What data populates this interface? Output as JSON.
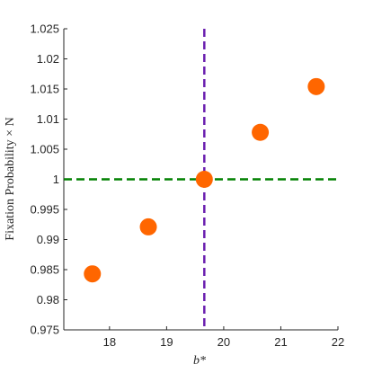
{
  "chart_data": {
    "type": "scatter",
    "title": "",
    "xlabel": "b*",
    "ylabel": "Fixation Probability × N",
    "xlim": [
      17.2,
      22
    ],
    "ylim": [
      0.975,
      1.025
    ],
    "xticks": [
      18,
      19,
      20,
      21,
      22
    ],
    "xtick_labels": [
      "18",
      "19",
      "20",
      "21",
      "22"
    ],
    "yticks": [
      0.975,
      0.98,
      0.985,
      0.99,
      0.995,
      1,
      1.005,
      1.01,
      1.015,
      1.02,
      1.025
    ],
    "ytick_labels": [
      "0.975",
      "0.98",
      "0.985",
      "0.99",
      "0.995",
      "1",
      "1.005",
      "1.01",
      "1.015",
      "1.02",
      "1.025"
    ],
    "grid": false,
    "points": [
      {
        "x": 17.7,
        "y": 0.9843
      },
      {
        "x": 18.68,
        "y": 0.9921
      },
      {
        "x": 19.66,
        "y": 1.0
      },
      {
        "x": 20.64,
        "y": 1.0078
      },
      {
        "x": 21.62,
        "y": 1.0154
      }
    ],
    "reference_lines": [
      {
        "orientation": "horizontal",
        "value": 1.0,
        "style": "dashed",
        "color": "#008000"
      },
      {
        "orientation": "vertical",
        "value": 19.66,
        "style": "dashed",
        "color": "#6a1fb0"
      }
    ],
    "marker_color": "#ff6600"
  }
}
